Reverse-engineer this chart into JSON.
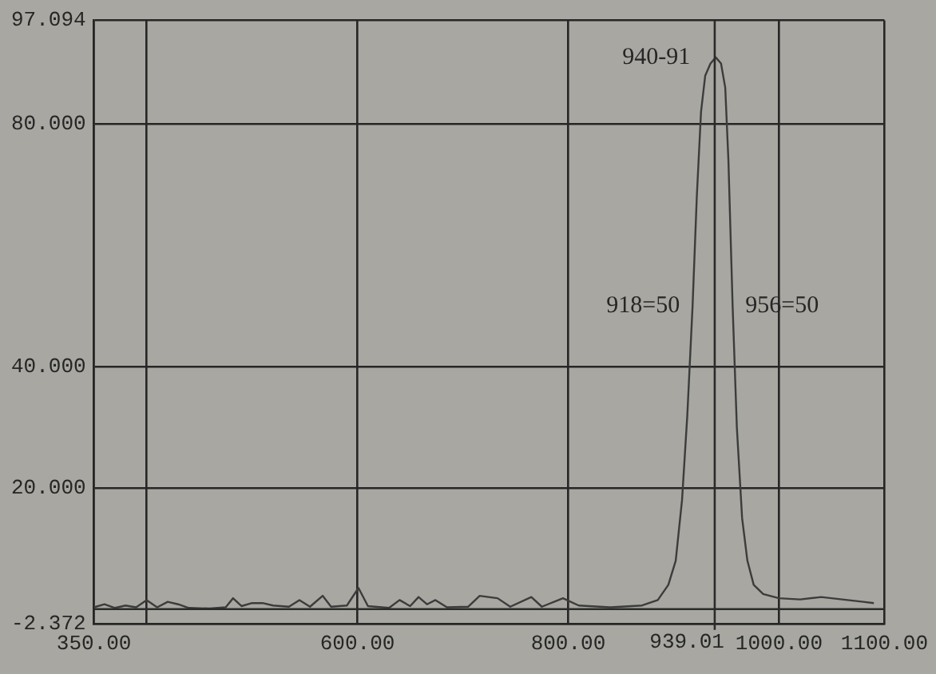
{
  "chart_data": {
    "type": "line",
    "annotations": [
      {
        "text": "940-91",
        "x": 940,
        "y": 91
      },
      {
        "text": "918=50",
        "x": 918,
        "y": 50
      },
      {
        "text": "956=50",
        "x": 956,
        "y": 50
      }
    ],
    "x": [
      350,
      360,
      370,
      380,
      390,
      400,
      410,
      420,
      430,
      440,
      460,
      475,
      482,
      490,
      500,
      510,
      520,
      535,
      545,
      555,
      567,
      575,
      590,
      601,
      610,
      630,
      640,
      650,
      658,
      666,
      674,
      685,
      705,
      716,
      733,
      745,
      765,
      775,
      795,
      810,
      840,
      870,
      885,
      895,
      902,
      908,
      913,
      918,
      922,
      926,
      930,
      935,
      940,
      945,
      949,
      952,
      956,
      960,
      965,
      970,
      976,
      985,
      1000,
      1020,
      1040,
      1060,
      1080,
      1090
    ],
    "series": [
      {
        "color": "#3c3c3c",
        "values": [
          0.3,
          0.8,
          0.2,
          0.6,
          0.3,
          1.5,
          0.3,
          1.2,
          0.8,
          0.2,
          0.1,
          0.3,
          1.8,
          0.5,
          1.0,
          1.0,
          0.6,
          0.4,
          1.5,
          0.4,
          2.2,
          0.4,
          0.6,
          3.5,
          0.5,
          0.2,
          1.5,
          0.5,
          2.0,
          0.8,
          1.5,
          0.3,
          0.4,
          2.2,
          1.8,
          0.4,
          2.0,
          0.4,
          1.8,
          0.6,
          0.3,
          0.6,
          1.5,
          4,
          8,
          18,
          32,
          50,
          68,
          82,
          88,
          90,
          91,
          90,
          86,
          74,
          50,
          30,
          15,
          8,
          4,
          2.5,
          1.8,
          1.6,
          2.0,
          1.6,
          1.2,
          1.0
        ]
      }
    ],
    "xlim": [
      350,
      1100
    ],
    "xticks": [
      {
        "value": 350,
        "label": "350.00"
      },
      {
        "value": 400,
        "label": null
      },
      {
        "value": 600,
        "label": "600.00"
      },
      {
        "value": 800,
        "label": "800.00"
      },
      {
        "value": 1000,
        "label": "1000.00"
      },
      {
        "value": 1100,
        "label": "1100.00"
      }
    ],
    "ylim": [
      -2.372,
      97.094
    ],
    "yticks": [
      {
        "value": -2.372,
        "label": "-2.372"
      },
      {
        "value": 20,
        "label": "20.000"
      },
      {
        "value": 40,
        "label": "40.000"
      },
      {
        "value": 80,
        "label": "80.000"
      },
      {
        "value": 97.094,
        "label": "97.094"
      }
    ],
    "ref_lines": [
      {
        "axis": "x",
        "value": 939.01,
        "label": "939.01",
        "color": "#2b2b2b"
      },
      {
        "axis": "y",
        "value": 0,
        "color": "#2b2b2b"
      }
    ],
    "grid": true,
    "legend": false,
    "marker": "none",
    "line_style": "solid"
  }
}
